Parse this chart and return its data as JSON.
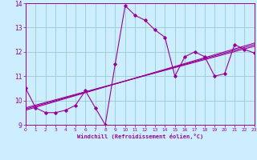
{
  "xlabel": "Windchill (Refroidissement éolien,°C)",
  "bg_color": "#cceeff",
  "line_color": "#990099",
  "grid_color": "#99cccc",
  "x_data": [
    0,
    1,
    2,
    3,
    4,
    5,
    6,
    7,
    8,
    9,
    10,
    11,
    12,
    13,
    14,
    15,
    16,
    17,
    18,
    19,
    20,
    21,
    22,
    23
  ],
  "y_main": [
    10.5,
    9.7,
    9.5,
    9.5,
    9.6,
    9.8,
    10.4,
    9.7,
    9.0,
    11.5,
    13.9,
    13.5,
    13.3,
    12.9,
    12.6,
    11.0,
    11.8,
    12.0,
    11.8,
    11.0,
    11.1,
    12.3,
    12.1,
    11.95
  ],
  "y_reg1": [
    9.6,
    9.72,
    9.84,
    9.96,
    10.08,
    10.2,
    10.32,
    10.44,
    10.56,
    10.68,
    10.8,
    10.92,
    11.04,
    11.16,
    11.28,
    11.4,
    11.52,
    11.64,
    11.76,
    11.88,
    12.0,
    12.12,
    12.24,
    12.36
  ],
  "y_reg2": [
    9.65,
    9.765,
    9.88,
    9.995,
    10.11,
    10.225,
    10.34,
    10.455,
    10.57,
    10.685,
    10.8,
    10.915,
    11.03,
    11.145,
    11.26,
    11.375,
    11.49,
    11.605,
    11.72,
    11.835,
    11.95,
    12.065,
    12.18,
    12.295
  ],
  "y_reg3": [
    9.7,
    9.81,
    9.92,
    10.03,
    10.14,
    10.25,
    10.36,
    10.47,
    10.58,
    10.69,
    10.8,
    10.91,
    11.02,
    11.13,
    11.24,
    11.35,
    11.46,
    11.57,
    11.68,
    11.79,
    11.9,
    12.01,
    12.12,
    12.23
  ],
  "ylim": [
    9.0,
    14.0
  ],
  "xlim": [
    0,
    23
  ],
  "yticks": [
    9,
    10,
    11,
    12,
    13,
    14
  ],
  "xticks": [
    0,
    1,
    2,
    3,
    4,
    5,
    6,
    7,
    8,
    9,
    10,
    11,
    12,
    13,
    14,
    15,
    16,
    17,
    18,
    19,
    20,
    21,
    22,
    23
  ]
}
